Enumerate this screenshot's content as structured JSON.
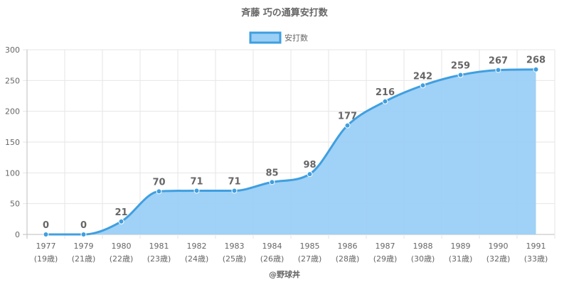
{
  "chart_data": {
    "type": "area",
    "title": "斉藤 巧の通算安打数",
    "legend": {
      "label": "安打数",
      "position": "top-center"
    },
    "categories": [
      {
        "year": "1977",
        "age": "(19歳)"
      },
      {
        "year": "1979",
        "age": "(21歳)"
      },
      {
        "year": "1980",
        "age": "(22歳)"
      },
      {
        "year": "1981",
        "age": "(23歳)"
      },
      {
        "year": "1982",
        "age": "(24歳)"
      },
      {
        "year": "1983",
        "age": "(25歳)"
      },
      {
        "year": "1984",
        "age": "(26歳)"
      },
      {
        "year": "1985",
        "age": "(27歳)"
      },
      {
        "year": "1986",
        "age": "(28歳)"
      },
      {
        "year": "1987",
        "age": "(29歳)"
      },
      {
        "year": "1988",
        "age": "(30歳)"
      },
      {
        "year": "1989",
        "age": "(31歳)"
      },
      {
        "year": "1990",
        "age": "(32歳)"
      },
      {
        "year": "1991",
        "age": "(33歳)"
      }
    ],
    "series": [
      {
        "name": "安打数",
        "values": [
          0,
          0,
          21,
          70,
          71,
          71,
          85,
          98,
          177,
          216,
          242,
          259,
          267,
          268
        ]
      }
    ],
    "ylim": [
      0,
      300
    ],
    "yticks": [
      0,
      50,
      100,
      150,
      200,
      250,
      300
    ],
    "grid": true,
    "colors": {
      "line": "#3f9fe0",
      "fill": "#9bcff5",
      "grid": "#e6e6e6",
      "text": "#666666"
    }
  },
  "footer": {
    "credit": "@野球丼"
  }
}
